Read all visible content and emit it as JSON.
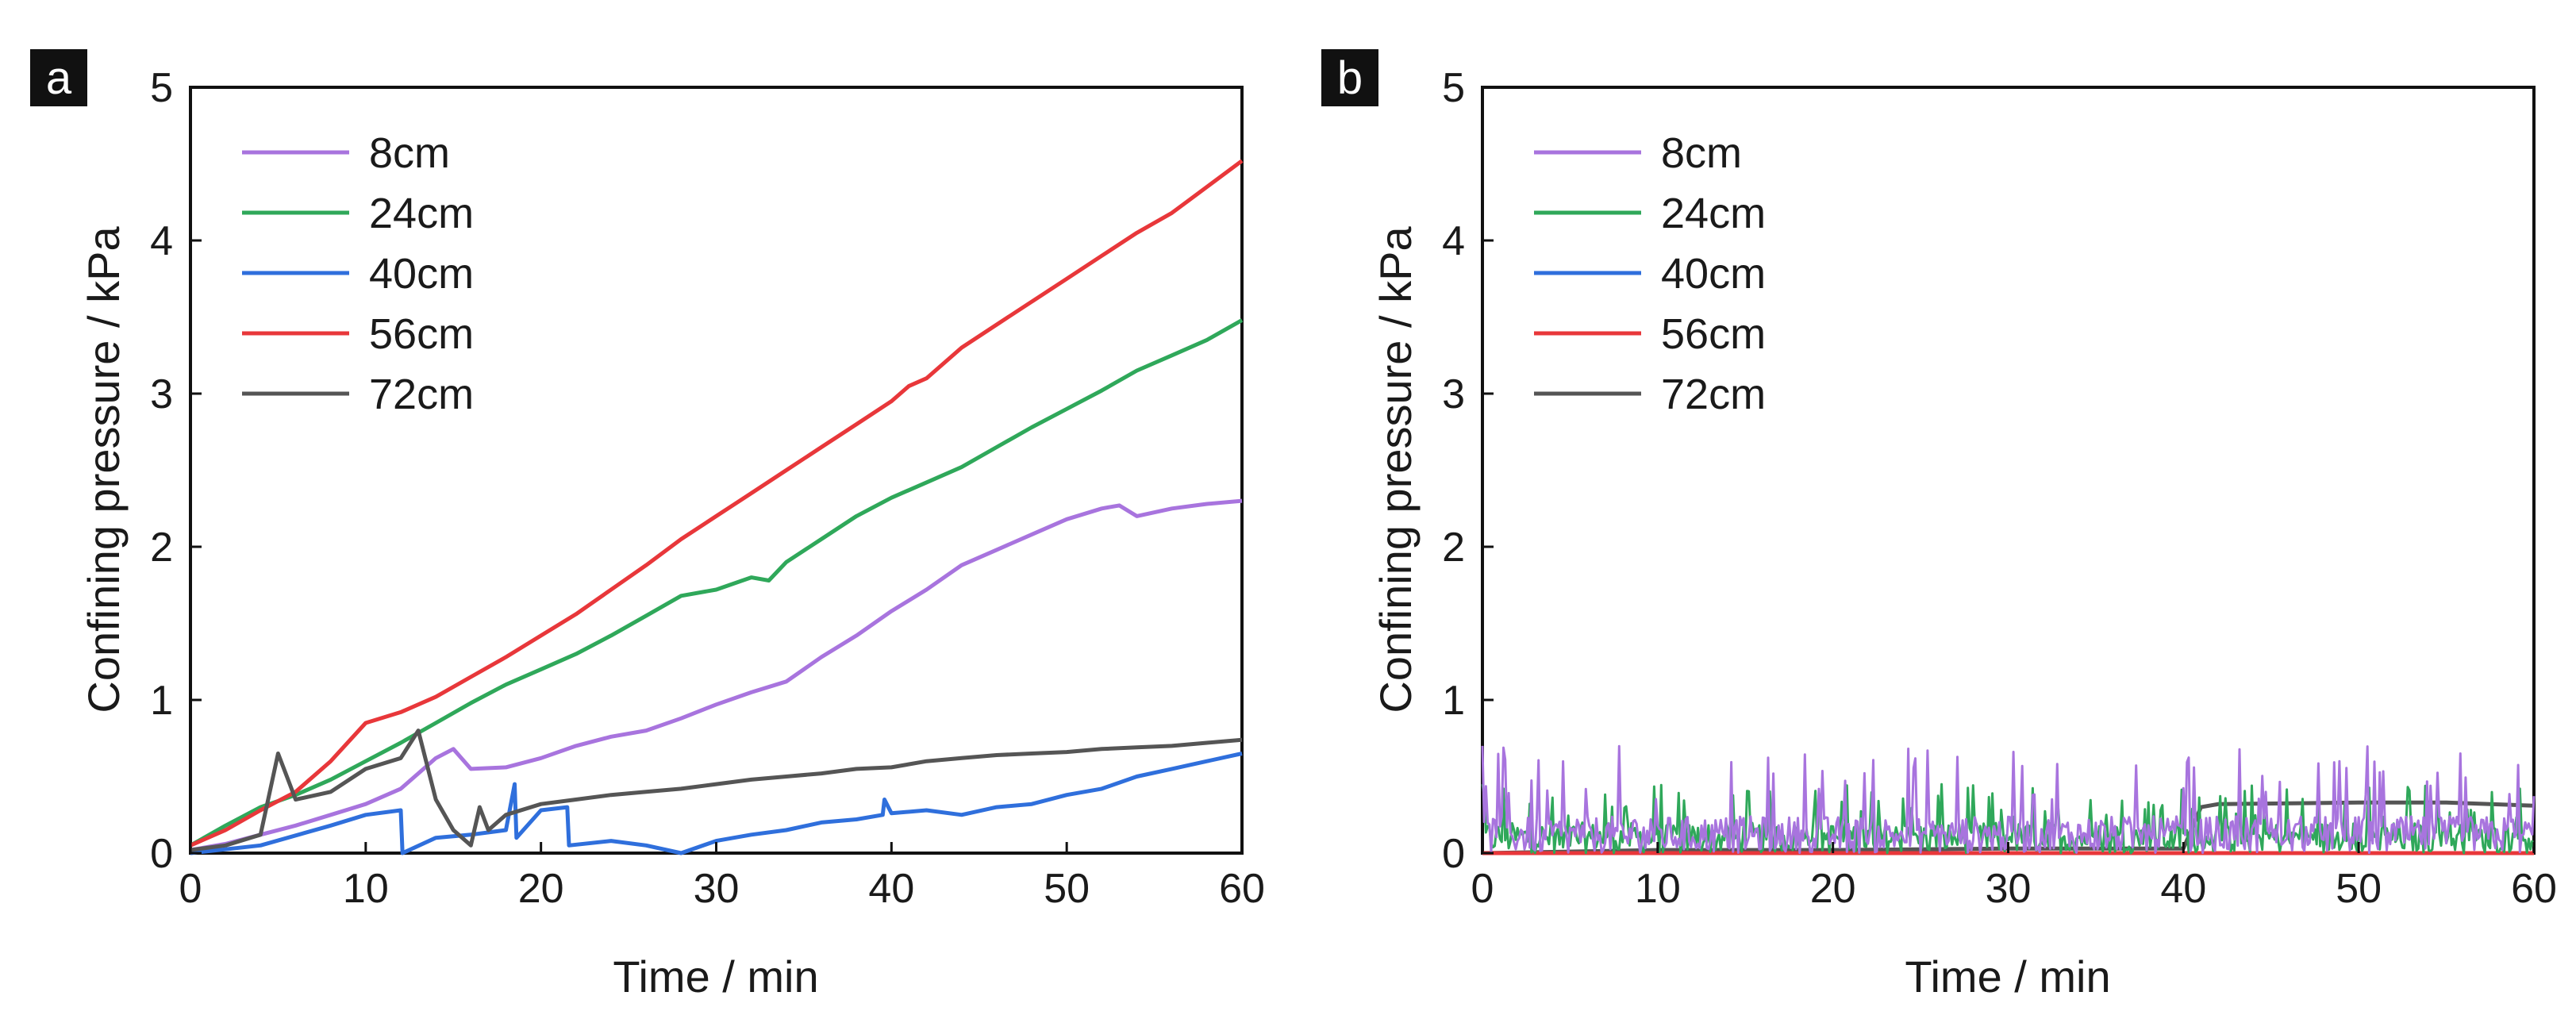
{
  "panels": [
    {
      "label": "a",
      "xlabel": "Time / min",
      "ylabel": "Confining pressure / kPa",
      "xlim": [
        0,
        60
      ],
      "ylim": [
        0,
        5
      ],
      "xticks": [
        0,
        10,
        20,
        30,
        40,
        50,
        60
      ],
      "yticks": [
        0,
        1,
        2,
        3,
        4,
        5
      ]
    },
    {
      "label": "b",
      "xlabel": "Time / min",
      "ylabel": "Confining pressure / kPa",
      "xlim": [
        0,
        60
      ],
      "ylim": [
        0,
        5
      ],
      "xticks": [
        0,
        10,
        20,
        30,
        40,
        50,
        60
      ],
      "yticks": [
        0,
        1,
        2,
        3,
        4,
        5
      ]
    }
  ],
  "legend": [
    {
      "name": "8cm",
      "color": "#a874de"
    },
    {
      "name": "24cm",
      "color": "#2fa85a"
    },
    {
      "name": "40cm",
      "color": "#2f6fdc"
    },
    {
      "name": "56cm",
      "color": "#e8373a"
    },
    {
      "name": "72cm",
      "color": "#555555"
    }
  ],
  "chart_data": [
    {
      "type": "line",
      "panel": "a",
      "xlabel": "Time / min",
      "ylabel": "Confining pressure / kPa",
      "xlim": [
        0,
        60
      ],
      "ylim": [
        0,
        5
      ],
      "series": [
        {
          "name": "8cm",
          "color": "#a874de",
          "x": [
            0,
            2,
            4,
            6,
            8,
            10,
            12,
            13,
            14,
            15,
            16,
            18,
            20,
            22,
            24,
            26,
            28,
            30,
            32,
            34,
            36,
            38,
            40,
            42,
            44,
            46,
            48,
            50,
            52,
            53,
            54,
            56,
            58,
            60
          ],
          "y": [
            0.02,
            0.06,
            0.12,
            0.18,
            0.25,
            0.32,
            0.42,
            0.52,
            0.62,
            0.68,
            0.55,
            0.56,
            0.62,
            0.7,
            0.76,
            0.8,
            0.88,
            0.97,
            1.05,
            1.12,
            1.28,
            1.42,
            1.58,
            1.72,
            1.88,
            1.98,
            2.08,
            2.18,
            2.25,
            2.27,
            2.2,
            2.25,
            2.28,
            2.3
          ]
        },
        {
          "name": "24cm",
          "color": "#2fa85a",
          "x": [
            0,
            2,
            4,
            6,
            8,
            10,
            12,
            14,
            16,
            18,
            20,
            22,
            24,
            26,
            28,
            30,
            32,
            33,
            34,
            36,
            38,
            40,
            42,
            44,
            46,
            48,
            50,
            52,
            54,
            56,
            58,
            60
          ],
          "y": [
            0.05,
            0.18,
            0.3,
            0.38,
            0.48,
            0.6,
            0.72,
            0.85,
            0.98,
            1.1,
            1.2,
            1.3,
            1.42,
            1.55,
            1.68,
            1.72,
            1.8,
            1.78,
            1.9,
            2.05,
            2.2,
            2.32,
            2.42,
            2.52,
            2.65,
            2.78,
            2.9,
            3.02,
            3.15,
            3.25,
            3.35,
            3.48
          ]
        },
        {
          "name": "40cm",
          "color": "#2f6fdc",
          "x": [
            0,
            4,
            8,
            10,
            12,
            12.1,
            14,
            16,
            18,
            18.5,
            18.6,
            20,
            21.5,
            21.6,
            24,
            26,
            28,
            30,
            32,
            34,
            36,
            38,
            39.5,
            39.6,
            40,
            42,
            44,
            46,
            48,
            50,
            52,
            54,
            56,
            58,
            60
          ],
          "y": [
            0,
            0.05,
            0.18,
            0.25,
            0.28,
            0.0,
            0.1,
            0.12,
            0.15,
            0.45,
            0.1,
            0.28,
            0.3,
            0.05,
            0.08,
            0.05,
            0.0,
            0.08,
            0.12,
            0.15,
            0.2,
            0.22,
            0.25,
            0.35,
            0.26,
            0.28,
            0.25,
            0.3,
            0.32,
            0.38,
            0.42,
            0.5,
            0.55,
            0.6,
            0.65
          ]
        },
        {
          "name": "56cm",
          "color": "#e8373a",
          "x": [
            0,
            2,
            4,
            6,
            8,
            10,
            12,
            14,
            16,
            18,
            20,
            22,
            24,
            26,
            28,
            30,
            32,
            34,
            36,
            38,
            40,
            41,
            42,
            44,
            46,
            48,
            50,
            52,
            54,
            56,
            58,
            60
          ],
          "y": [
            0.05,
            0.15,
            0.28,
            0.4,
            0.6,
            0.85,
            0.92,
            1.02,
            1.15,
            1.28,
            1.42,
            1.56,
            1.72,
            1.88,
            2.05,
            2.2,
            2.35,
            2.5,
            2.65,
            2.8,
            2.95,
            3.05,
            3.1,
            3.3,
            3.45,
            3.6,
            3.75,
            3.9,
            4.05,
            4.18,
            4.35,
            4.52
          ]
        },
        {
          "name": "72cm",
          "color": "#555555",
          "x": [
            0,
            2,
            4,
            5,
            5.5,
            6,
            8,
            10,
            12,
            13,
            14,
            15,
            16,
            16.5,
            17,
            18,
            20,
            22,
            24,
            26,
            28,
            30,
            32,
            34,
            36,
            38,
            40,
            42,
            44,
            46,
            48,
            50,
            52,
            54,
            56,
            58,
            60
          ],
          "y": [
            0.02,
            0.05,
            0.12,
            0.65,
            0.5,
            0.35,
            0.4,
            0.55,
            0.62,
            0.8,
            0.35,
            0.15,
            0.05,
            0.3,
            0.15,
            0.25,
            0.32,
            0.35,
            0.38,
            0.4,
            0.42,
            0.45,
            0.48,
            0.5,
            0.52,
            0.55,
            0.56,
            0.6,
            0.62,
            0.64,
            0.65,
            0.66,
            0.68,
            0.69,
            0.7,
            0.72,
            0.74
          ]
        }
      ]
    },
    {
      "type": "line",
      "panel": "b",
      "xlabel": "Time / min",
      "ylabel": "Confining pressure / kPa",
      "xlim": [
        0,
        60
      ],
      "ylim": [
        0,
        5
      ],
      "note": "Series 8cm and 24cm are noisy signals fluctuating between ~0 and ~0.5 kPa (peaks up to ~0.7); 72cm rises to ~0.3 kPa after ~41 min; 40cm and 56cm stay near 0.",
      "series": [
        {
          "name": "8cm",
          "color": "#a874de",
          "baseline": 0.12,
          "noise_max": 0.7,
          "x_range": [
            0,
            60
          ]
        },
        {
          "name": "24cm",
          "color": "#2fa85a",
          "baseline": 0.1,
          "noise_max": 0.45,
          "x_range": [
            0,
            60
          ]
        },
        {
          "name": "40cm",
          "color": "#2f6fdc",
          "x": [
            0,
            60
          ],
          "y": [
            0.0,
            0.0
          ]
        },
        {
          "name": "56cm",
          "color": "#e8373a",
          "x": [
            0,
            60
          ],
          "y": [
            0.0,
            0.0
          ]
        },
        {
          "name": "72cm",
          "color": "#555555",
          "x": [
            0,
            10,
            20,
            30,
            40,
            41,
            42,
            50,
            55,
            60
          ],
          "y": [
            0.0,
            0.02,
            0.02,
            0.03,
            0.03,
            0.3,
            0.32,
            0.33,
            0.33,
            0.31
          ]
        }
      ]
    }
  ]
}
